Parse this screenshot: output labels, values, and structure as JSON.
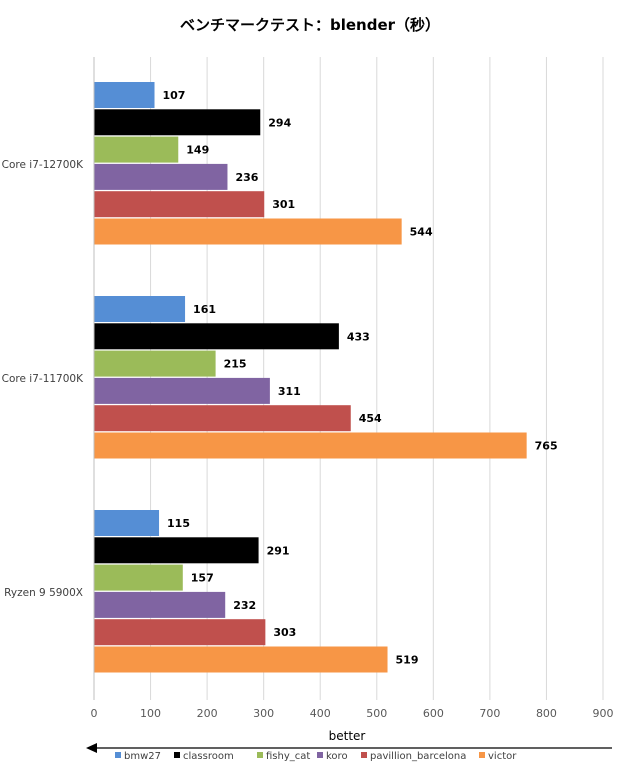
{
  "chart_data": {
    "type": "bar",
    "orientation": "horizontal",
    "title": "ベンチマークテスト：blender（秒）",
    "categories": [
      "Core i7-12700K",
      "Core i7-11700K",
      "Ryzen 9 5900X"
    ],
    "series": [
      {
        "name": "bmw27",
        "color": "#558ed5",
        "values": [
          107,
          161,
          115
        ]
      },
      {
        "name": "classroom",
        "color": "#000000",
        "values": [
          294,
          433,
          291
        ]
      },
      {
        "name": "fishy_cat",
        "color": "#9bbb59",
        "values": [
          149,
          215,
          157
        ]
      },
      {
        "name": "koro",
        "color": "#8064a2",
        "values": [
          236,
          311,
          232
        ]
      },
      {
        "name": "pavillion_barcelona",
        "color": "#c0504d",
        "values": [
          301,
          454,
          303
        ]
      },
      {
        "name": "victor",
        "color": "#f79646",
        "values": [
          544,
          765,
          519
        ]
      }
    ],
    "xlim": [
      0,
      900
    ],
    "xticks": [
      0,
      100,
      200,
      300,
      400,
      500,
      600,
      700,
      800,
      900
    ],
    "grid": true,
    "legend": "bottom",
    "annotation": "better",
    "annotation_arrow": "left"
  }
}
